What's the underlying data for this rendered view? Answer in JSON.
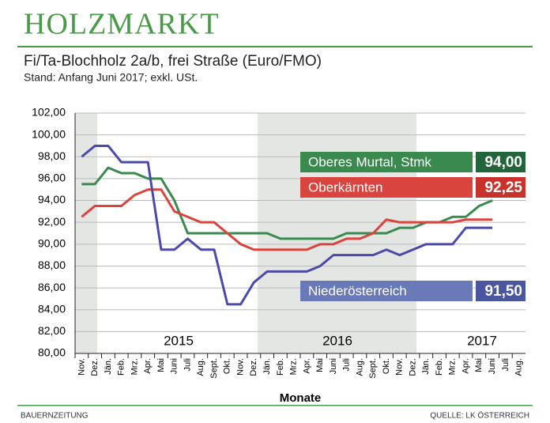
{
  "title": "HOLZMARKT",
  "subtitle": "Fi/Ta-Blochholz 2a/b, frei Straße (Euro/FMO)",
  "note": "Stand: Anfang Juni 2017; exkl. USt.",
  "footer_left": "BAUERNZEITUNG",
  "footer_right": "QUELLE: LK ÖSTERREICH",
  "chart_data": {
    "type": "line",
    "x_label": "Monate",
    "years": [
      "2015",
      "2016",
      "2017"
    ],
    "categories": [
      "Nov.",
      "Dez.",
      "Jän.",
      "Feb.",
      "Mrz.",
      "Apr.",
      "Mai",
      "Juni",
      "Juli",
      "Aug.",
      "Sept.",
      "Okt.",
      "Nov.",
      "Dez.",
      "Jän.",
      "Feb.",
      "Mrz.",
      "Apr.",
      "Mai",
      "Juni",
      "Juli",
      "Aug.",
      "Sept.",
      "Okt.",
      "Nov.",
      "Dez.",
      "Jän.",
      "Feb.",
      "Mrz.",
      "Apr.",
      "Mai",
      "Juni",
      "Juli",
      "Aug."
    ],
    "ylim": [
      80,
      102
    ],
    "yticks": [
      {
        "value": 80,
        "label": "80,00"
      },
      {
        "value": 82,
        "label": "82,00"
      },
      {
        "value": 84,
        "label": "84,00"
      },
      {
        "value": 86,
        "label": "86,00"
      },
      {
        "value": 88,
        "label": "88,00"
      },
      {
        "value": 90,
        "label": "90,00"
      },
      {
        "value": 92,
        "label": "92,00"
      },
      {
        "value": 94,
        "label": "94,00"
      },
      {
        "value": 96,
        "label": "96,00"
      },
      {
        "value": 98,
        "label": "98,00"
      },
      {
        "value": 100,
        "label": "100,00"
      },
      {
        "value": 102,
        "label": "102,00"
      }
    ],
    "grid": true,
    "series": [
      {
        "name": "Oberes Murtal, Stmk",
        "color": "#3a8a4f",
        "values": [
          95.5,
          95.5,
          97,
          96.5,
          96.5,
          96,
          96,
          94,
          91,
          91,
          91,
          91,
          91,
          91,
          91,
          90.5,
          90.5,
          90.5,
          90.5,
          90.5,
          91,
          91,
          91,
          91,
          91.5,
          91.5,
          92,
          92,
          92.5,
          92.5,
          93.5,
          94,
          null,
          null
        ],
        "value_labels": [
          null,
          null,
          null,
          null,
          null,
          null,
          null,
          null,
          null,
          null,
          null,
          null,
          null,
          null,
          null,
          null,
          null,
          null,
          null,
          null,
          null,
          null,
          null,
          null,
          null,
          null,
          null,
          null,
          null,
          null,
          null,
          "94,00",
          null,
          null
        ]
      },
      {
        "name": "Oberkärnten",
        "color": "#d9453e",
        "values": [
          92.5,
          93.5,
          93.5,
          93.5,
          94.5,
          95,
          95,
          93,
          92.5,
          92,
          92,
          91,
          90,
          89.5,
          89.5,
          89.5,
          89.5,
          89.5,
          90,
          90,
          90.5,
          90.5,
          91,
          92.25,
          92,
          92,
          92,
          92,
          92,
          92.25,
          92.25,
          92.25,
          null,
          null
        ],
        "value_labels": [
          null,
          null,
          null,
          null,
          null,
          null,
          null,
          null,
          null,
          null,
          null,
          null,
          null,
          null,
          null,
          null,
          null,
          null,
          null,
          null,
          null,
          null,
          null,
          null,
          null,
          null,
          null,
          null,
          null,
          null,
          null,
          "92,25",
          null,
          null
        ]
      },
      {
        "name": "Niederösterreich",
        "color": "#4b4aa8",
        "values": [
          98,
          99,
          99,
          97.5,
          97.5,
          97.5,
          89.5,
          89.5,
          90.5,
          89.5,
          89.5,
          84.5,
          84.5,
          86.5,
          87.5,
          87.5,
          87.5,
          87.5,
          88,
          89,
          89,
          89,
          89,
          89.5,
          89,
          89.5,
          90,
          90,
          90,
          91.5,
          91.5,
          91.5,
          null,
          null
        ],
        "value_labels": [
          null,
          null,
          null,
          null,
          null,
          null,
          null,
          null,
          null,
          null,
          null,
          null,
          null,
          null,
          null,
          null,
          null,
          null,
          null,
          null,
          null,
          null,
          null,
          null,
          null,
          null,
          null,
          null,
          null,
          null,
          null,
          "91,50",
          null,
          null
        ]
      }
    ]
  }
}
